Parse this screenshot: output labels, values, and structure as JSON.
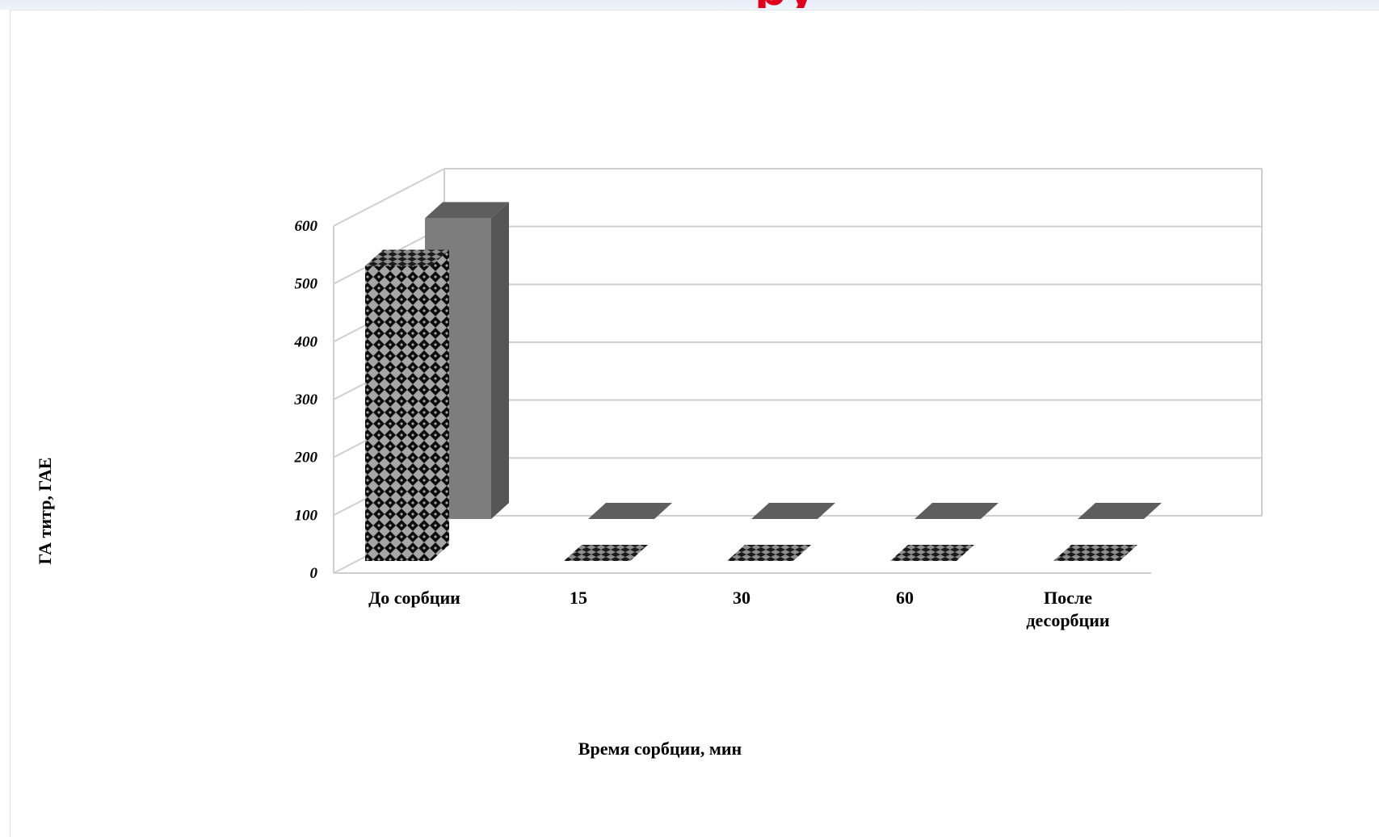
{
  "slide": {
    "title_fragment": "ру"
  },
  "chart_data": {
    "type": "bar",
    "style": "3d-clustered",
    "categories": [
      "До сорбции",
      "15",
      "30",
      "60",
      "После\nдесорбции"
    ],
    "series": [
      {
        "values": [
          510,
          0,
          0,
          0,
          0
        ],
        "pattern": "diamond-checker"
      },
      {
        "values": [
          520,
          0,
          0,
          0,
          0
        ],
        "color": "#7d7d7d"
      }
    ],
    "ylim": [
      0,
      600
    ],
    "yticks": [
      0,
      100,
      200,
      300,
      400,
      500,
      600
    ],
    "xlabel": "Время сорбции, мин",
    "ylabel": "ГА титр, ГАЕ",
    "grid": true,
    "legend": "none"
  }
}
